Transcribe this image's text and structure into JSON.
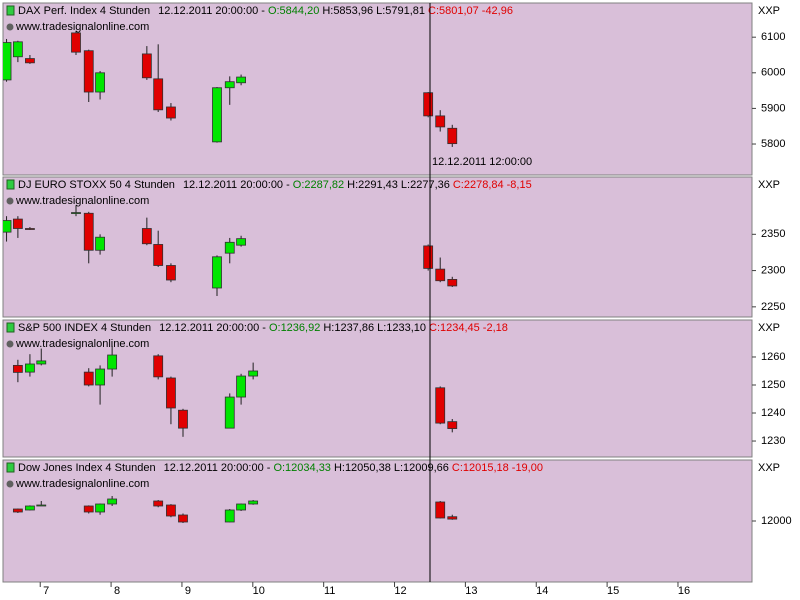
{
  "crosshair_label": "12.12.2011 12:00:00",
  "chart_data": [
    {
      "type": "candlestick",
      "title": "DAX Perf. Index 4 Stunden",
      "timestamp": "12.12.2011 20:00:00 -",
      "quote": {
        "open": "O:5844,20",
        "high": "H:5853,96",
        "low": "L:5791,81",
        "close": "C:5801,07",
        "change": "-42,96"
      },
      "watermark": "www.tradesignalonline.com",
      "axis_label": "XXP",
      "x": [
        6.44,
        6.6,
        6.77,
        7.42,
        7.6,
        7.76,
        8.42,
        8.58,
        8.76,
        9.41,
        9.59,
        9.75,
        12.39,
        12.56,
        12.73
      ],
      "open": [
        5980,
        6045,
        6040,
        6112,
        6062,
        5946,
        6053,
        5983,
        5904,
        5806,
        5958,
        5972,
        5944,
        5879,
        5844.2
      ],
      "high": [
        6095,
        6090,
        6050,
        6118,
        6065,
        6005,
        6075,
        6080,
        5915,
        5960,
        5990,
        5995,
        5946,
        5895,
        5853.96
      ],
      "low": [
        5975,
        6030,
        6025,
        6050,
        5918,
        5925,
        5980,
        5890,
        5866,
        5804,
        5910,
        5965,
        5875,
        5835,
        5791.81
      ],
      "close": [
        6085,
        6087,
        6028,
        6058,
        5946,
        6000,
        5986,
        5896,
        5873,
        5958,
        5975,
        5988,
        5879,
        5848,
        5801.07
      ],
      "xlim": [
        6.39,
        16.96
      ],
      "ylim": [
        5713,
        6196
      ],
      "yticks": [
        5800,
        5900,
        6000,
        6100
      ],
      "up_color": "#00e600",
      "down_color": "#e00000"
    },
    {
      "type": "candlestick",
      "title": "DJ EURO STOXX 50 4 Stunden",
      "timestamp": "12.12.2011 20:00:00 -",
      "quote": {
        "open": "O:2287,82",
        "high": "H:2291,43",
        "low": "L:2277,36",
        "close": "C:2278,84",
        "change": "-8,15"
      },
      "watermark": "www.tradesignalonline.com",
      "axis_label": "XXP",
      "x": [
        6.44,
        6.6,
        6.77,
        7.42,
        7.6,
        7.76,
        8.42,
        8.58,
        8.76,
        9.41,
        9.59,
        9.75,
        12.39,
        12.56,
        12.73
      ],
      "open": [
        2353,
        2371,
        2358,
        2379,
        2379,
        2328,
        2358,
        2336,
        2307,
        2276,
        2324,
        2335,
        2334,
        2302,
        2287.82
      ],
      "high": [
        2375,
        2375,
        2360,
        2390,
        2381,
        2350,
        2373,
        2355,
        2310,
        2321,
        2345,
        2348,
        2336,
        2318,
        2291.43
      ],
      "low": [
        2340,
        2345,
        2356,
        2375,
        2310,
        2322,
        2335,
        2305,
        2284,
        2265,
        2310,
        2333,
        2300,
        2284,
        2277.36
      ],
      "close": [
        2369,
        2358,
        2357,
        2380,
        2328,
        2346,
        2337,
        2307,
        2287,
        2319,
        2339,
        2344,
        2303,
        2286,
        2278.84
      ],
      "xlim": [
        6.39,
        16.96
      ],
      "ylim": [
        2236,
        2429
      ],
      "yticks": [
        2250,
        2300,
        2350
      ],
      "up_color": "#00e600",
      "down_color": "#e00000"
    },
    {
      "type": "candlestick",
      "title": "S&P 500 INDEX 4 Stunden",
      "timestamp": "12.12.2011 20:00:00 -",
      "quote": {
        "open": "O:1236,92",
        "high": "H:1237,86",
        "low": "L:1233,10",
        "close": "C:1234,45",
        "change": "-2,18"
      },
      "watermark": "www.tradesignalonline.com",
      "axis_label": "XXP",
      "x": [
        6.6,
        6.77,
        6.93,
        7.6,
        7.76,
        7.93,
        8.58,
        8.76,
        8.93,
        9.59,
        9.75,
        9.92,
        12.56,
        12.73
      ],
      "open": [
        1257,
        1254.6,
        1257.5,
        1254.6,
        1250,
        1255.7,
        1260.4,
        1252.5,
        1241,
        1234.6,
        1245.7,
        1253.2,
        1249,
        1236.92
      ],
      "high": [
        1259,
        1261,
        1263,
        1256,
        1257,
        1264,
        1261,
        1253,
        1241.5,
        1247,
        1254,
        1258,
        1249.5,
        1237.86
      ],
      "low": [
        1251,
        1253,
        1257,
        1249.5,
        1243,
        1253,
        1252,
        1236,
        1231.5,
        1234.6,
        1243,
        1252,
        1236,
        1233.1
      ],
      "close": [
        1254.5,
        1257.5,
        1258.6,
        1250,
        1255.7,
        1260.7,
        1252.9,
        1241.8,
        1234.6,
        1245.7,
        1253.2,
        1255,
        1236.4,
        1234.45
      ],
      "xlim": [
        6.39,
        16.96
      ],
      "ylim": [
        1224.3,
        1273.2
      ],
      "yticks": [
        1230,
        1240,
        1250,
        1260
      ],
      "up_color": "#00e600",
      "down_color": "#e00000"
    },
    {
      "type": "candlestick",
      "title": "Dow Jones Index 4 Stunden",
      "timestamp": "12.12.2011 20:00:00 -",
      "quote": {
        "open": "O:12034,33",
        "high": "H:12050,38",
        "low": "L:12009,66",
        "close": "C:12015,18",
        "change": "-19,00"
      },
      "watermark": "www.tradesignalonline.com",
      "axis_label": "XXP",
      "x": [
        6.6,
        6.77,
        6.93,
        7.6,
        7.76,
        7.93,
        8.58,
        8.76,
        8.93,
        9.59,
        9.75,
        9.92,
        12.56,
        12.73
      ],
      "open": [
        12096,
        12088,
        12126,
        12120,
        12072,
        12136,
        12160,
        12128,
        12048,
        11992,
        12088,
        12136,
        12152,
        12034.33
      ],
      "high": [
        12100,
        12125,
        12160,
        12125,
        12140,
        12200,
        12168,
        12135,
        12060,
        12096,
        12140,
        12168,
        12160,
        12050.38
      ],
      "low": [
        12064,
        12084,
        12120,
        12060,
        12050,
        12120,
        12110,
        12030,
        11984,
        11990,
        12080,
        12130,
        12020,
        12009.66
      ],
      "close": [
        12072,
        12120,
        12128,
        12072,
        12136,
        12176,
        12120,
        12040,
        11992,
        12088,
        12136,
        12160,
        12024,
        12015.18
      ],
      "xlim": [
        6.39,
        16.96
      ],
      "ylim": [
        11512,
        12488
      ],
      "yticks": [
        12000
      ],
      "xticks": [
        7,
        8,
        9,
        10,
        11,
        12,
        13,
        14,
        15,
        16
      ],
      "up_color": "#00e600",
      "down_color": "#e00000"
    }
  ]
}
